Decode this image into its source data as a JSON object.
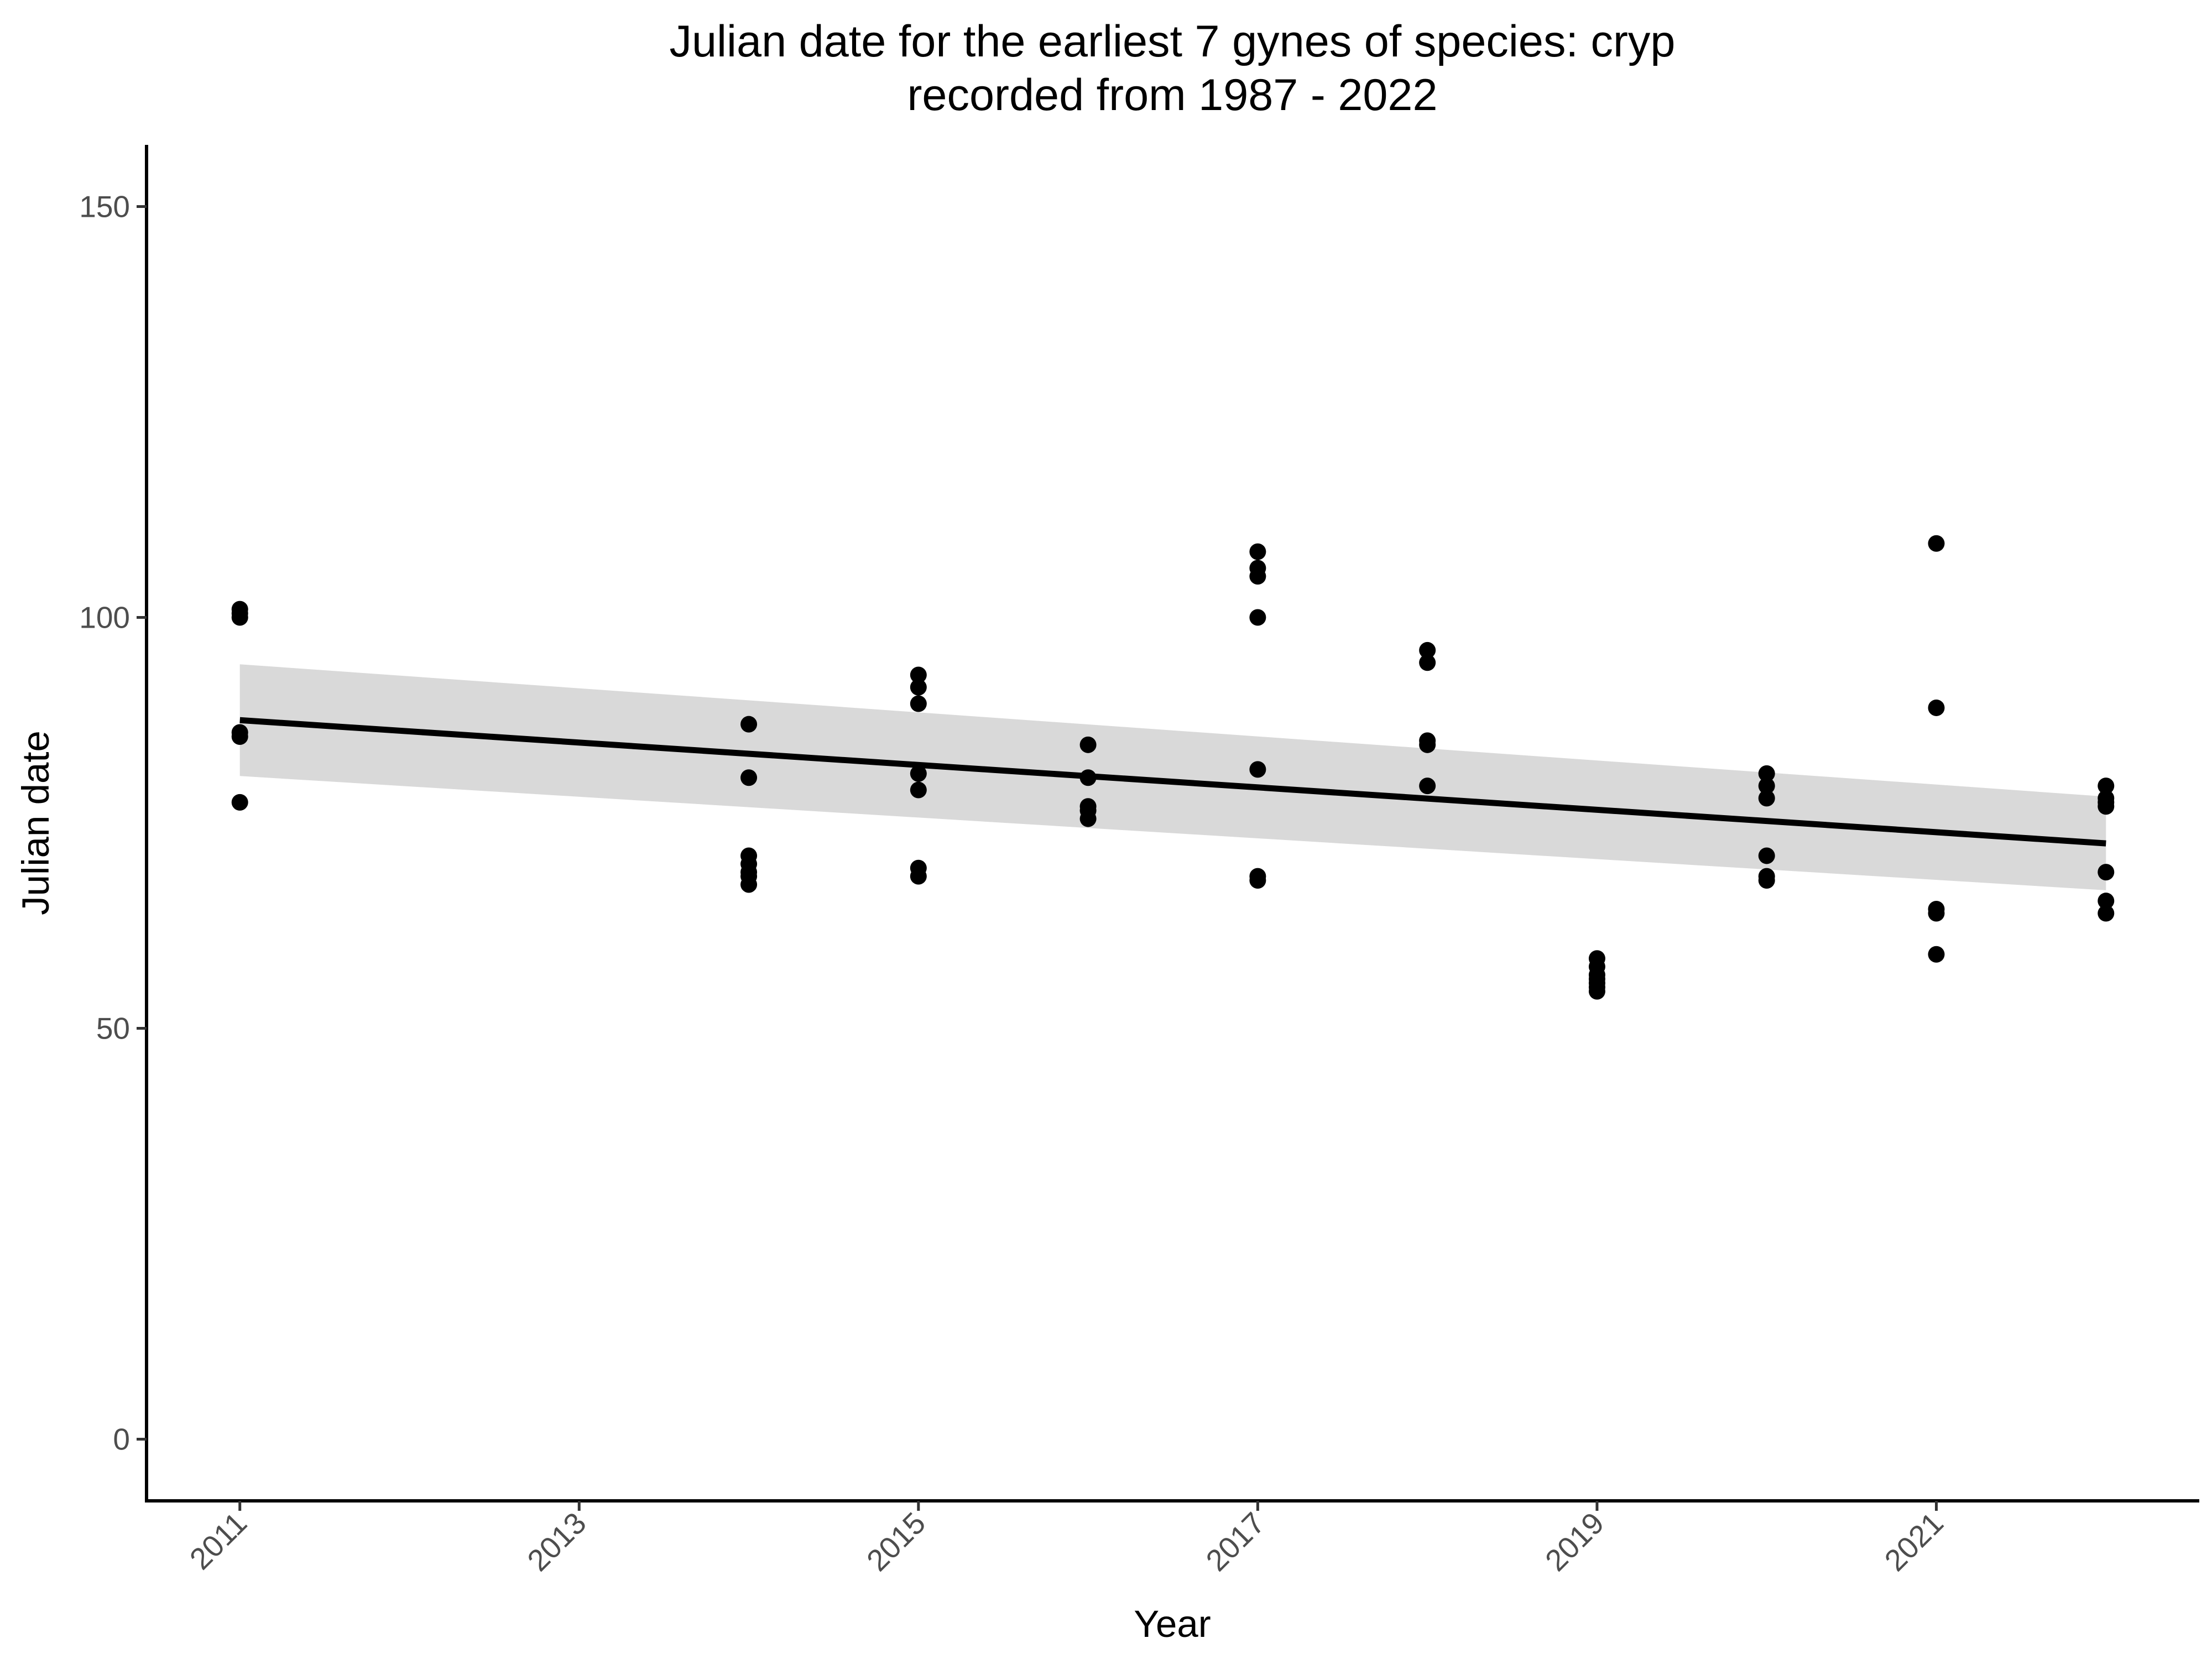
{
  "chart_data": {
    "type": "scatter",
    "title": "Julian date for the earliest 7 gynes of species: cryp",
    "subtitle": "recorded from 1987 - 2022",
    "xlabel": "Year",
    "ylabel": "Julian date",
    "xlim": [
      2010.45,
      2022.55
    ],
    "ylim": [
      -7.5,
      157.5
    ],
    "x_ticks": [
      2011,
      2013,
      2015,
      2017,
      2019,
      2021
    ],
    "x_tick_labels": [
      "2011",
      "2013",
      "2015",
      "2017",
      "2019",
      "2021"
    ],
    "y_ticks": [
      0,
      50,
      100,
      150
    ],
    "y_tick_labels": [
      "0",
      "50",
      "100",
      "150"
    ],
    "grid": false,
    "legend": "none",
    "point_color": "#000000",
    "band_color": "#d9d9d9",
    "points": [
      {
        "x": 2011,
        "y": 101
      },
      {
        "x": 2011,
        "y": 100.5
      },
      {
        "x": 2011,
        "y": 100
      },
      {
        "x": 2011,
        "y": 86
      },
      {
        "x": 2011,
        "y": 85.5
      },
      {
        "x": 2011,
        "y": 77.5
      },
      {
        "x": 2014,
        "y": 87
      },
      {
        "x": 2014,
        "y": 80.5
      },
      {
        "x": 2014,
        "y": 71
      },
      {
        "x": 2014,
        "y": 70
      },
      {
        "x": 2014,
        "y": 69
      },
      {
        "x": 2014,
        "y": 68.5
      },
      {
        "x": 2014,
        "y": 67.5
      },
      {
        "x": 2015,
        "y": 93
      },
      {
        "x": 2015,
        "y": 91.5
      },
      {
        "x": 2015,
        "y": 89.5
      },
      {
        "x": 2015,
        "y": 81
      },
      {
        "x": 2015,
        "y": 79
      },
      {
        "x": 2015,
        "y": 69.5
      },
      {
        "x": 2015,
        "y": 68.5
      },
      {
        "x": 2016,
        "y": 84.5
      },
      {
        "x": 2016,
        "y": 80.5
      },
      {
        "x": 2016,
        "y": 77
      },
      {
        "x": 2016,
        "y": 76.5
      },
      {
        "x": 2016,
        "y": 75.5
      },
      {
        "x": 2017,
        "y": 108
      },
      {
        "x": 2017,
        "y": 106
      },
      {
        "x": 2017,
        "y": 105
      },
      {
        "x": 2017,
        "y": 100
      },
      {
        "x": 2017,
        "y": 81.5
      },
      {
        "x": 2017,
        "y": 68.5
      },
      {
        "x": 2017,
        "y": 68
      },
      {
        "x": 2018,
        "y": 96
      },
      {
        "x": 2018,
        "y": 94.5
      },
      {
        "x": 2018,
        "y": 85
      },
      {
        "x": 2018,
        "y": 84.5
      },
      {
        "x": 2018,
        "y": 79.5
      },
      {
        "x": 2019,
        "y": 58.5
      },
      {
        "x": 2019,
        "y": 57.5
      },
      {
        "x": 2019,
        "y": 56.5
      },
      {
        "x": 2019,
        "y": 56
      },
      {
        "x": 2019,
        "y": 55.5
      },
      {
        "x": 2019,
        "y": 55
      },
      {
        "x": 2019,
        "y": 54.5
      },
      {
        "x": 2020,
        "y": 81
      },
      {
        "x": 2020,
        "y": 79.5
      },
      {
        "x": 2020,
        "y": 78
      },
      {
        "x": 2020,
        "y": 71
      },
      {
        "x": 2020,
        "y": 68.5
      },
      {
        "x": 2020,
        "y": 68
      },
      {
        "x": 2021,
        "y": 109
      },
      {
        "x": 2021,
        "y": 89
      },
      {
        "x": 2021,
        "y": 64.5
      },
      {
        "x": 2021,
        "y": 64
      },
      {
        "x": 2021,
        "y": 59
      },
      {
        "x": 2022,
        "y": 79.5
      },
      {
        "x": 2022,
        "y": 78
      },
      {
        "x": 2022,
        "y": 77.5
      },
      {
        "x": 2022,
        "y": 77
      },
      {
        "x": 2022,
        "y": 69
      },
      {
        "x": 2022,
        "y": 65.5
      },
      {
        "x": 2022,
        "y": 64
      }
    ],
    "fit": {
      "method": "linear",
      "x": [
        2011,
        2022
      ],
      "y": [
        87.5,
        72.5
      ],
      "ci_lower": [
        80.7,
        66.8
      ],
      "ci_upper": [
        94.3,
        78.2
      ]
    }
  }
}
